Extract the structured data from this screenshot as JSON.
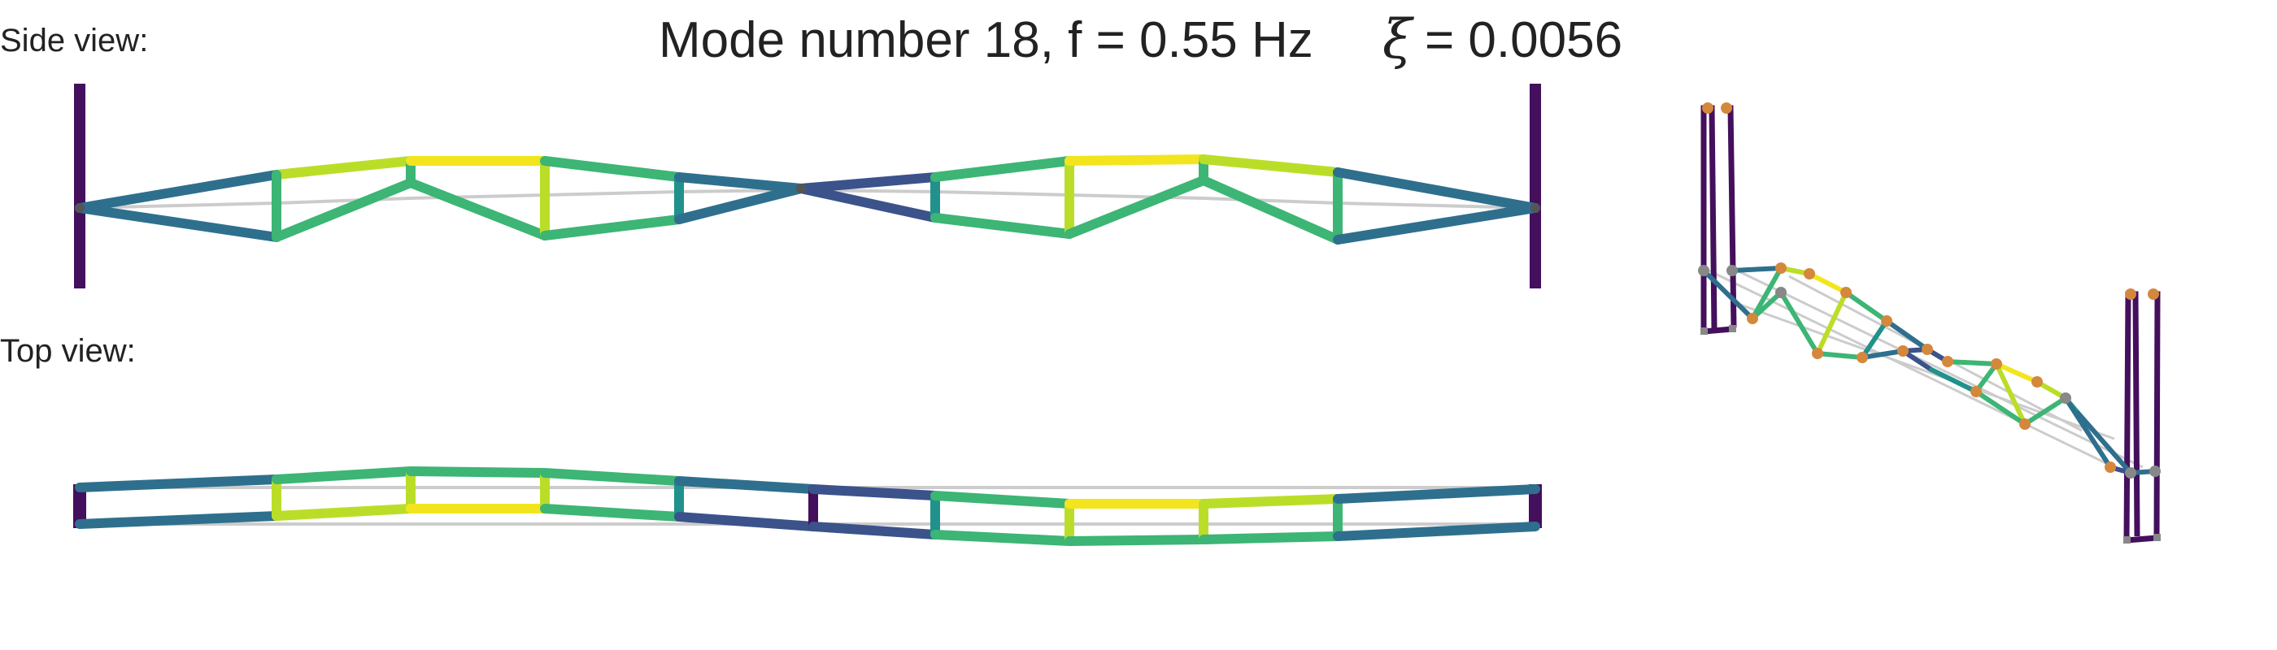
{
  "labels": {
    "side_view": "Side view:",
    "top_view": "Top view:"
  },
  "title": {
    "main": "Mode number 18, f = 0.55 Hz",
    "xi_symbol": "ξ",
    "xi_value": "= 0.0056"
  },
  "colors": {
    "tower": "#440f5c",
    "dark_teal": "#2f6f8e",
    "navy": "#3b528b",
    "teal": "#21918c",
    "green": "#3cb575",
    "lime": "#bade28",
    "yellow": "#f2e51d",
    "undeformed": "#cccccc",
    "node_orange": "#d4883d",
    "node_gray": "#888888"
  }
}
